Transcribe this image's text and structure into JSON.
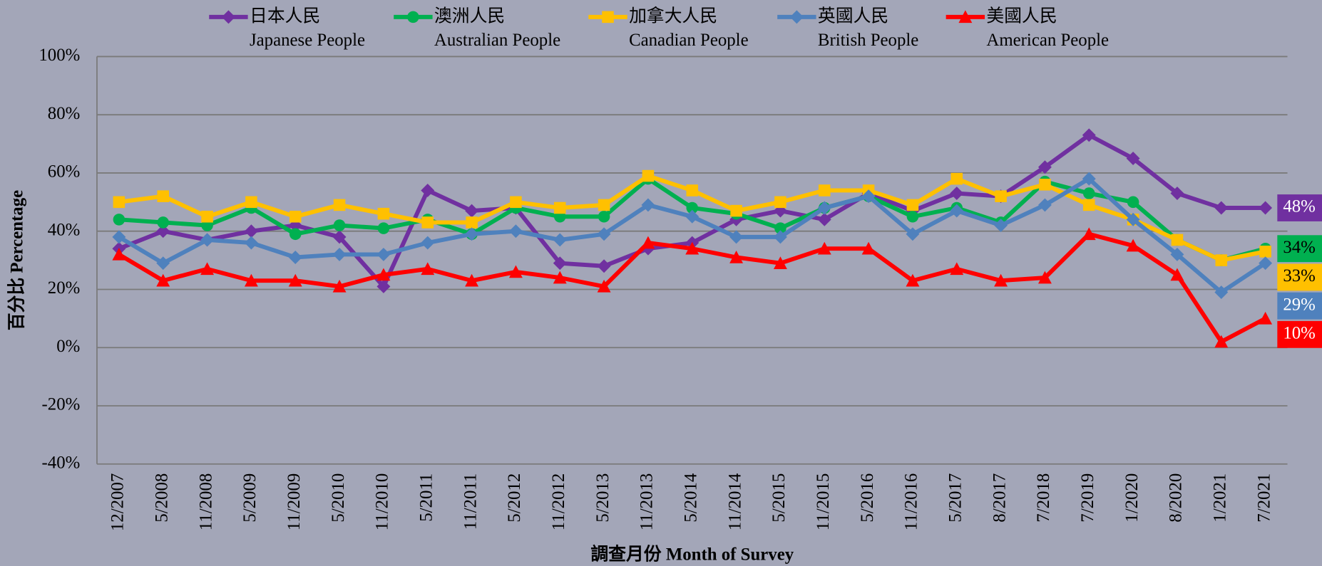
{
  "chart_data": {
    "type": "line",
    "x_label": "調查月份 Month of Survey",
    "y_label": "百分比 Percentage",
    "categories": [
      "12/2007",
      "5/2008",
      "11/2008",
      "5/2009",
      "11/2009",
      "5/2010",
      "11/2010",
      "5/2011",
      "11/2011",
      "5/2012",
      "11/2012",
      "5/2013",
      "11/2013",
      "5/2014",
      "11/2014",
      "5/2015",
      "11/2015",
      "5/2016",
      "11/2016",
      "5/2017",
      "8/2017",
      "7/2018",
      "7/2019",
      "1/2020",
      "8/2020",
      "1/2021",
      "7/2021"
    ],
    "ylim": [
      -40,
      100
    ],
    "yticks": [
      {
        "value": -40,
        "label": "-40%"
      },
      {
        "value": -20,
        "label": "-20%"
      },
      {
        "value": 0,
        "label": "0%"
      },
      {
        "value": 20,
        "label": "20%"
      },
      {
        "value": 40,
        "label": "40%"
      },
      {
        "value": 60,
        "label": "60%"
      },
      {
        "value": 80,
        "label": "80%"
      },
      {
        "value": 100,
        "label": "100%"
      }
    ],
    "grid": true,
    "series": [
      {
        "name": "日本人民",
        "name_en": "Japanese People",
        "color": "#7030a0",
        "marker": "diamond",
        "label_text_color": "#ffffff",
        "values": [
          34,
          40,
          37,
          40,
          42,
          38,
          21,
          54,
          47,
          48,
          29,
          28,
          34,
          36,
          44,
          47,
          44,
          53,
          47,
          53,
          52,
          62,
          73,
          65,
          53,
          48,
          48
        ],
        "value_labels": [
          null,
          null,
          null,
          null,
          null,
          null,
          null,
          null,
          null,
          null,
          null,
          null,
          null,
          null,
          null,
          null,
          null,
          null,
          null,
          null,
          null,
          null,
          null,
          null,
          null,
          null,
          "48%"
        ]
      },
      {
        "name": "澳洲人民",
        "name_en": "Australian People",
        "color": "#00b050",
        "marker": "circle",
        "label_text_color": "#000000",
        "values": [
          44,
          43,
          42,
          48,
          39,
          42,
          41,
          44,
          39,
          48,
          45,
          45,
          58,
          48,
          46,
          41,
          48,
          52,
          45,
          48,
          43,
          57,
          53,
          50,
          37,
          30,
          34
        ],
        "value_labels": [
          null,
          null,
          null,
          null,
          null,
          null,
          null,
          null,
          null,
          null,
          null,
          null,
          null,
          null,
          null,
          null,
          null,
          null,
          null,
          null,
          null,
          null,
          null,
          null,
          null,
          null,
          "34%"
        ]
      },
      {
        "name": "加拿大人民",
        "name_en": "Canadian People",
        "color": "#ffc000",
        "marker": "square",
        "label_text_color": "#000000",
        "values": [
          50,
          52,
          45,
          50,
          45,
          49,
          46,
          43,
          43,
          50,
          48,
          49,
          59,
          54,
          47,
          50,
          54,
          54,
          49,
          58,
          52,
          56,
          49,
          44,
          37,
          30,
          33
        ],
        "value_labels": [
          null,
          null,
          null,
          null,
          null,
          null,
          null,
          null,
          null,
          null,
          null,
          null,
          null,
          null,
          null,
          null,
          null,
          null,
          null,
          null,
          null,
          null,
          null,
          null,
          null,
          null,
          "33%"
        ]
      },
      {
        "name": "英國人民",
        "name_en": "British People",
        "color": "#4f81bd",
        "marker": "diamond",
        "label_text_color": "#ffffff",
        "values": [
          38,
          29,
          37,
          36,
          31,
          32,
          32,
          36,
          39,
          40,
          37,
          39,
          49,
          45,
          38,
          38,
          48,
          52,
          39,
          47,
          42,
          49,
          58,
          44,
          32,
          19,
          29
        ],
        "value_labels": [
          null,
          null,
          null,
          null,
          null,
          null,
          null,
          null,
          null,
          null,
          null,
          null,
          null,
          null,
          null,
          null,
          null,
          null,
          null,
          null,
          null,
          null,
          null,
          null,
          null,
          null,
          "29%"
        ]
      },
      {
        "name": "美國人民",
        "name_en": "American People",
        "color": "#ff0000",
        "marker": "triangle",
        "label_text_color": "#ffffff",
        "values": [
          32,
          23,
          27,
          23,
          23,
          21,
          25,
          27,
          23,
          26,
          24,
          21,
          36,
          34,
          31,
          29,
          34,
          34,
          23,
          27,
          23,
          24,
          39,
          35,
          25,
          2,
          10
        ],
        "value_labels": [
          null,
          null,
          null,
          null,
          null,
          null,
          null,
          null,
          null,
          null,
          null,
          null,
          null,
          null,
          null,
          null,
          null,
          null,
          null,
          null,
          null,
          null,
          null,
          null,
          null,
          null,
          "10%"
        ]
      }
    ]
  }
}
